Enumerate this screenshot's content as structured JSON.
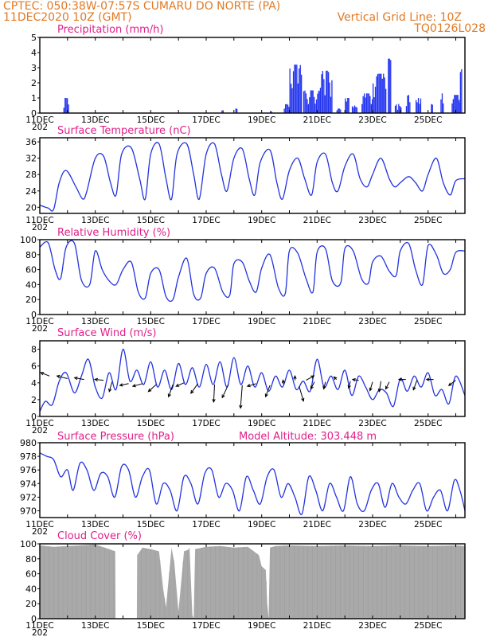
{
  "header": {
    "line1_left": "CPTEC:   050:38W-07:57S   CUMARU DO NORTE (PA)",
    "line2_left": "11DEC2020 10Z (GMT)",
    "line2_right": "Vertical Grid Line: 10Z",
    "line3_right": "TQ0126L028"
  },
  "colors": {
    "header": "#e07a26",
    "title": "#e0208a",
    "line": "#2233dd",
    "bar": "#2233ee",
    "cloud": "#a9a9a9"
  },
  "x_axis": {
    "labels": [
      "11DEC",
      "13DEC",
      "15DEC",
      "17DEC",
      "19DEC",
      "21DEC",
      "23DEC",
      "25DEC"
    ],
    "year_fragment": "202",
    "day_min": 0,
    "day_max": 15.33
  },
  "chart_data": [
    {
      "id": "precipitation",
      "type": "bar",
      "title": "Precipitation (mm/h)",
      "ylim": [
        0,
        5
      ],
      "yticks": [
        0,
        1,
        2,
        3,
        4,
        5
      ],
      "bursts": [
        {
          "start": 0.85,
          "end": 1.05,
          "peak": 1.0
        },
        {
          "start": 6.55,
          "end": 6.6,
          "peak": 0.2
        },
        {
          "start": 7.05,
          "end": 7.1,
          "peak": 0.3
        },
        {
          "start": 8.3,
          "end": 8.35,
          "peak": 0.2
        },
        {
          "start": 8.8,
          "end": 9.0,
          "peak": 0.6
        },
        {
          "start": 9.0,
          "end": 9.45,
          "peak": 3.2
        },
        {
          "start": 9.5,
          "end": 10.1,
          "peak": 1.5
        },
        {
          "start": 10.1,
          "end": 10.55,
          "peak": 2.8
        },
        {
          "start": 10.7,
          "end": 10.85,
          "peak": 0.3
        },
        {
          "start": 11.0,
          "end": 11.15,
          "peak": 1.0
        },
        {
          "start": 11.25,
          "end": 11.45,
          "peak": 0.5
        },
        {
          "start": 11.6,
          "end": 12.0,
          "peak": 1.3
        },
        {
          "start": 12.0,
          "end": 12.5,
          "peak": 2.6
        },
        {
          "start": 12.55,
          "end": 12.65,
          "peak": 3.6
        },
        {
          "start": 12.8,
          "end": 13.05,
          "peak": 0.6
        },
        {
          "start": 13.2,
          "end": 13.35,
          "peak": 1.2
        },
        {
          "start": 13.55,
          "end": 13.75,
          "peak": 1.0
        },
        {
          "start": 14.1,
          "end": 14.15,
          "peak": 0.6
        },
        {
          "start": 14.45,
          "end": 14.55,
          "peak": 1.3
        },
        {
          "start": 14.85,
          "end": 15.15,
          "peak": 1.2
        },
        {
          "start": 15.15,
          "end": 15.22,
          "peak": 2.9
        }
      ]
    },
    {
      "id": "temperature",
      "type": "line",
      "title": "Surface Temperature (nC)",
      "ylim": [
        18.5,
        37
      ],
      "yticks": [
        20,
        24,
        28,
        32,
        36
      ],
      "x": [
        0,
        0.3,
        0.5,
        0.7,
        0.95,
        1.3,
        1.55,
        1.7,
        2.0,
        2.3,
        2.55,
        2.75,
        2.95,
        3.3,
        3.6,
        3.8,
        4.0,
        4.3,
        4.55,
        4.75,
        4.95,
        5.3,
        5.55,
        5.75,
        6.0,
        6.3,
        6.55,
        6.75,
        7.0,
        7.3,
        7.55,
        7.75,
        7.95,
        8.3,
        8.55,
        8.75,
        9.0,
        9.3,
        9.55,
        9.8,
        10.0,
        10.3,
        10.55,
        10.75,
        11.0,
        11.3,
        11.55,
        11.8,
        12.0,
        12.3,
        12.6,
        12.8,
        13.0,
        13.3,
        13.55,
        13.8,
        14.0,
        14.3,
        14.55,
        14.8,
        15.0,
        15.33
      ],
      "y": [
        20.5,
        19.8,
        19.5,
        26,
        29,
        25,
        22,
        24,
        32,
        32.5,
        26,
        23,
        33,
        34.5,
        27,
        22,
        33,
        35.5,
        27,
        22,
        33,
        35.5,
        28,
        22,
        33,
        35.5,
        28,
        24,
        32,
        34.3,
        27,
        23,
        31,
        34,
        26,
        22,
        29,
        32,
        27,
        23,
        31,
        33,
        26,
        24,
        30,
        33,
        27,
        25,
        28,
        32,
        27,
        25,
        26,
        27.5,
        26,
        24,
        28,
        32,
        26,
        23,
        26.5,
        27
      ]
    },
    {
      "id": "humidity",
      "type": "line",
      "title": "Relative Humidity (%)",
      "ylim": [
        0,
        100
      ],
      "yticks": [
        0,
        20,
        40,
        60,
        80,
        100
      ],
      "x": [
        0,
        0.3,
        0.55,
        0.75,
        0.95,
        1.25,
        1.5,
        1.8,
        2.0,
        2.25,
        2.5,
        2.75,
        3.0,
        3.3,
        3.55,
        3.8,
        4.0,
        4.3,
        4.55,
        4.8,
        5.0,
        5.3,
        5.55,
        5.8,
        6.0,
        6.3,
        6.6,
        6.85,
        7.0,
        7.3,
        7.55,
        7.8,
        8.0,
        8.3,
        8.6,
        8.85,
        9.0,
        9.3,
        9.6,
        9.85,
        10.0,
        10.3,
        10.55,
        10.85,
        11.0,
        11.3,
        11.6,
        11.85,
        12.0,
        12.3,
        12.6,
        12.85,
        13.0,
        13.3,
        13.55,
        13.8,
        14.0,
        14.3,
        14.55,
        14.8,
        15.0,
        15.33
      ],
      "y": [
        90,
        96,
        60,
        48,
        90,
        95,
        46,
        40,
        85,
        60,
        45,
        40,
        60,
        70,
        30,
        22,
        55,
        60,
        24,
        20,
        50,
        75,
        27,
        22,
        55,
        62,
        30,
        26,
        68,
        70,
        45,
        30,
        62,
        80,
        36,
        28,
        85,
        82,
        48,
        30,
        83,
        88,
        45,
        42,
        88,
        85,
        48,
        42,
        70,
        78,
        58,
        52,
        85,
        95,
        60,
        40,
        92,
        80,
        55,
        60,
        83,
        85
      ]
    },
    {
      "id": "wind",
      "type": "line",
      "title": "Surface Wind (m/s)",
      "ylim": [
        0,
        9
      ],
      "yticks": [
        0,
        2,
        4,
        6,
        8
      ],
      "x": [
        0,
        0.2,
        0.45,
        0.7,
        0.95,
        1.25,
        1.5,
        1.75,
        2.0,
        2.25,
        2.5,
        2.75,
        3.0,
        3.25,
        3.5,
        3.75,
        4.0,
        4.25,
        4.5,
        4.75,
        5.0,
        5.25,
        5.5,
        5.75,
        6.0,
        6.25,
        6.5,
        6.75,
        7.0,
        7.25,
        7.5,
        7.75,
        8.0,
        8.25,
        8.5,
        8.75,
        9.0,
        9.25,
        9.5,
        9.75,
        10.0,
        10.25,
        10.5,
        10.75,
        11.0,
        11.25,
        11.5,
        11.75,
        12.0,
        12.25,
        12.5,
        12.75,
        13.0,
        13.25,
        13.5,
        13.75,
        14.0,
        14.25,
        14.5,
        14.75,
        15.0,
        15.33
      ],
      "y": [
        0.6,
        1.8,
        1.4,
        4.2,
        5.2,
        2.8,
        4.8,
        6.8,
        3.5,
        2.2,
        5.2,
        3.2,
        8.0,
        4.2,
        5.5,
        3.8,
        6.5,
        3.5,
        5.5,
        3.2,
        6.3,
        3.8,
        5.8,
        3.5,
        6.2,
        3.8,
        6.5,
        3.5,
        7.0,
        3.8,
        6.0,
        3.5,
        5.2,
        3.0,
        4.8,
        3.5,
        5.5,
        3.2,
        4.2,
        3.0,
        6.8,
        3.5,
        4.8,
        3.2,
        5.5,
        2.5,
        4.8,
        3.5,
        2.0,
        3.2,
        2.8,
        1.2,
        4.5,
        3.0,
        4.8,
        3.5,
        5.2,
        2.5,
        3.2,
        1.5,
        4.8,
        2.5
      ],
      "arrows": [
        {
          "x": 0.35,
          "y": 4.8,
          "u": -1.0,
          "v": 0.4
        },
        {
          "x": 1.0,
          "y": 4.5,
          "u": -1.2,
          "v": 0.3
        },
        {
          "x": 1.6,
          "y": 4.4,
          "u": -1.1,
          "v": 0.2
        },
        {
          "x": 2.3,
          "y": 4.3,
          "u": -1.0,
          "v": 0.1
        },
        {
          "x": 2.6,
          "y": 4.1,
          "u": -0.3,
          "v": -1.1
        },
        {
          "x": 3.2,
          "y": 3.9,
          "u": -1.0,
          "v": -0.2
        },
        {
          "x": 3.7,
          "y": 3.9,
          "u": -1.1,
          "v": -0.3
        },
        {
          "x": 4.2,
          "y": 3.8,
          "u": -0.9,
          "v": -0.8
        },
        {
          "x": 4.8,
          "y": 3.8,
          "u": -0.5,
          "v": -1.4
        },
        {
          "x": 5.2,
          "y": 4.0,
          "u": -0.9,
          "v": -0.4
        },
        {
          "x": 5.7,
          "y": 3.9,
          "u": -0.8,
          "v": -1.1
        },
        {
          "x": 6.3,
          "y": 3.8,
          "u": -0.1,
          "v": -2.0
        },
        {
          "x": 6.8,
          "y": 3.8,
          "u": -0.7,
          "v": -1.5
        },
        {
          "x": 7.3,
          "y": 3.7,
          "u": -0.2,
          "v": -2.6
        },
        {
          "x": 7.8,
          "y": 3.9,
          "u": -1.0,
          "v": -0.3
        },
        {
          "x": 8.3,
          "y": 3.7,
          "u": -0.5,
          "v": -1.3
        },
        {
          "x": 8.8,
          "y": 3.8,
          "u": -0.1,
          "v": 0.5
        },
        {
          "x": 9.2,
          "y": 4.3,
          "u": 0.0,
          "v": 0.5
        },
        {
          "x": 9.35,
          "y": 3.6,
          "u": 0.5,
          "v": -1.7
        },
        {
          "x": 9.6,
          "y": 4.3,
          "u": 0.9,
          "v": 0.5
        },
        {
          "x": 9.9,
          "y": 4.1,
          "u": -0.4,
          "v": -0.8
        },
        {
          "x": 10.3,
          "y": 4.1,
          "u": -0.2,
          "v": -0.8
        },
        {
          "x": 10.7,
          "y": 4.4,
          "u": -0.3,
          "v": 0.3
        },
        {
          "x": 11.2,
          "y": 4.2,
          "u": -0.2,
          "v": -0.8
        },
        {
          "x": 11.5,
          "y": 4.3,
          "u": -0.7,
          "v": 0.1
        },
        {
          "x": 12.0,
          "y": 4.1,
          "u": -0.3,
          "v": -1.0
        },
        {
          "x": 12.3,
          "y": 4.2,
          "u": -0.2,
          "v": -1.2
        },
        {
          "x": 12.6,
          "y": 4.1,
          "u": -0.4,
          "v": -0.8
        },
        {
          "x": 13.2,
          "y": 4.4,
          "u": -0.8,
          "v": 0.0
        },
        {
          "x": 13.6,
          "y": 4.3,
          "u": -0.4,
          "v": -1.1
        },
        {
          "x": 14.2,
          "y": 4.4,
          "u": -0.8,
          "v": 0.0
        },
        {
          "x": 15.0,
          "y": 4.3,
          "u": -0.8,
          "v": -0.6
        }
      ]
    },
    {
      "id": "pressure",
      "type": "line",
      "title": "Surface Pressure (hPa)",
      "extra_label": "Model Altitude: 303.448 m",
      "ylim": [
        969,
        980
      ],
      "yticks": [
        970,
        972,
        974,
        976,
        978,
        980
      ],
      "x": [
        0,
        0.25,
        0.5,
        0.75,
        1.0,
        1.2,
        1.45,
        1.7,
        1.95,
        2.2,
        2.45,
        2.7,
        2.95,
        3.2,
        3.45,
        3.7,
        3.95,
        4.2,
        4.45,
        4.7,
        4.95,
        5.2,
        5.45,
        5.7,
        5.95,
        6.2,
        6.45,
        6.7,
        6.95,
        7.2,
        7.45,
        7.7,
        7.95,
        8.2,
        8.45,
        8.7,
        8.95,
        9.2,
        9.45,
        9.7,
        9.95,
        10.2,
        10.45,
        10.7,
        10.95,
        11.2,
        11.45,
        11.7,
        11.95,
        12.2,
        12.45,
        12.7,
        12.95,
        13.2,
        13.45,
        13.7,
        13.95,
        14.2,
        14.45,
        14.7,
        14.95,
        15.15,
        15.33
      ],
      "y": [
        978.5,
        978,
        977.5,
        975,
        976,
        973,
        977,
        976,
        973,
        975.5,
        975,
        972,
        976.5,
        976,
        972,
        975,
        976,
        971,
        974,
        973,
        970,
        975,
        974,
        971,
        975.5,
        976,
        972,
        974,
        973,
        970,
        975,
        973,
        971,
        975,
        976,
        972,
        974,
        972,
        969.5,
        975,
        973,
        970,
        974,
        972,
        970,
        975,
        971,
        970,
        973,
        974,
        970.5,
        974,
        972,
        971,
        973,
        974,
        970,
        972,
        973,
        970,
        974.5,
        973,
        970
      ]
    },
    {
      "id": "cloud",
      "type": "area",
      "title": "Cloud Cover (%)",
      "ylim": [
        0,
        100
      ],
      "yticks": [
        0,
        20,
        40,
        60,
        80,
        100
      ],
      "x": [
        0,
        0.5,
        1.0,
        1.5,
        2.0,
        2.5,
        2.72,
        2.73,
        3.5,
        3.51,
        3.65,
        3.7,
        4.0,
        4.3,
        4.45,
        4.55,
        4.75,
        4.85,
        5.0,
        5.2,
        5.35,
        5.4,
        5.5,
        5.55,
        5.6,
        6.0,
        6.5,
        7.0,
        7.5,
        7.9,
        8.0,
        8.15,
        8.2,
        8.25,
        8.3,
        8.5,
        9.0,
        10.0,
        11.0,
        12.0,
        13.0,
        14.0,
        15.0,
        15.33
      ],
      "y": [
        98,
        96,
        97,
        98,
        99,
        93,
        90,
        0,
        0,
        85,
        92,
        95,
        93,
        90,
        40,
        15,
        95,
        75,
        10,
        90,
        92,
        95,
        5,
        0,
        93,
        96,
        97,
        95,
        96,
        85,
        70,
        65,
        20,
        0,
        95,
        97,
        98,
        97,
        98,
        97,
        98,
        97,
        98,
        97
      ]
    }
  ]
}
